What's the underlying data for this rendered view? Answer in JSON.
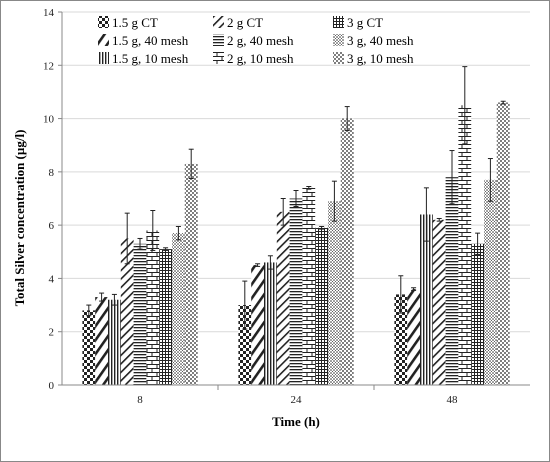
{
  "chart_data": {
    "type": "bar",
    "categories": [
      "8",
      "24",
      "48"
    ],
    "xlabel": "Time (h)",
    "ylabel": "Total Silver concentration (µg/l)",
    "ylim": [
      0,
      14
    ],
    "yticks": [
      0,
      2,
      4,
      6,
      8,
      10,
      12,
      14
    ],
    "legend_position": "top-left",
    "series": [
      {
        "name": "1.5 g CT",
        "pattern": "checker-coarse",
        "values": [
          2.8,
          3.0,
          3.4
        ],
        "errors": [
          0.2,
          0.9,
          0.7
        ]
      },
      {
        "name": "1.5 g, 40 mesh",
        "pattern": "wide-diagonal",
        "values": [
          3.3,
          4.5,
          3.6
        ],
        "errors": [
          0.15,
          0.05,
          0.05
        ]
      },
      {
        "name": "1.5 g, 10 mesh",
        "pattern": "vertical",
        "values": [
          3.2,
          4.6,
          6.4
        ],
        "errors": [
          0.2,
          0.25,
          1.0
        ]
      },
      {
        "name": "2 g CT",
        "pattern": "diagonal",
        "values": [
          5.5,
          6.5,
          6.2
        ],
        "errors": [
          0.95,
          0.5,
          0.05
        ]
      },
      {
        "name": "2 g, 40 mesh",
        "pattern": "horizontal",
        "values": [
          5.3,
          7.0,
          7.8
        ],
        "errors": [
          0.2,
          0.3,
          1.0
        ]
      },
      {
        "name": "2 g, 10 mesh",
        "pattern": "brick",
        "values": [
          5.8,
          7.4,
          10.5
        ],
        "errors": [
          0.75,
          0.05,
          1.45
        ]
      },
      {
        "name": "3 g CT",
        "pattern": "grid",
        "values": [
          5.1,
          5.9,
          5.3
        ],
        "errors": [
          0.05,
          0.05,
          0.4
        ]
      },
      {
        "name": "3 g, 40 mesh",
        "pattern": "dots",
        "values": [
          5.7,
          6.9,
          7.7
        ],
        "errors": [
          0.25,
          0.75,
          0.8
        ]
      },
      {
        "name": "3 g, 10 mesh",
        "pattern": "sparse-dots",
        "values": [
          8.3,
          10.0,
          10.6
        ],
        "errors": [
          0.55,
          0.45,
          0.05
        ]
      }
    ],
    "legend_rows": [
      [
        "1.5 g CT",
        "2 g CT",
        "3 g CT"
      ],
      [
        "1.5 g, 40 mesh",
        "2 g, 40 mesh",
        "3 g, 40 mesh"
      ],
      [
        "1.5 g, 10 mesh",
        "2 g, 10 mesh",
        "3 g, 10 mesh"
      ]
    ]
  }
}
